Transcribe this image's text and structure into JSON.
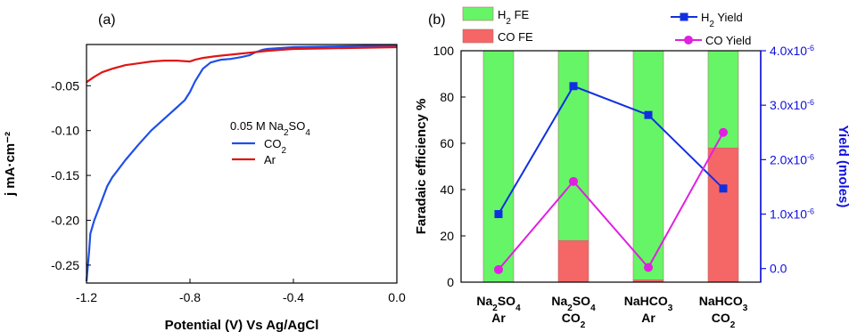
{
  "chart_data": [
    {
      "type": "line",
      "panel_label": "(a)",
      "xlabel": "Potential (V) Vs Ag/AgCl",
      "ylabel": "j mA·cm⁻²",
      "xlim": [
        -1.2,
        0.0
      ],
      "ylim": [
        -0.27,
        -0.004
      ],
      "xticks": [
        -1.2,
        -0.8,
        -0.4,
        0.0
      ],
      "xtick_labels": [
        "-1.2",
        "-0.8",
        "-0.4",
        "0.0"
      ],
      "yticks": [
        -0.25,
        -0.2,
        -0.15,
        -0.1,
        -0.05
      ],
      "ytick_labels": [
        "-0.25",
        "-0.20",
        "-0.15",
        "-0.10",
        "-0.05"
      ],
      "legend": {
        "title_parts": [
          {
            "t": "0.05 M Na"
          },
          {
            "t": "2",
            "sub": true
          },
          {
            "t": "SO"
          },
          {
            "t": "4",
            "sub": true
          }
        ],
        "entries": [
          {
            "parts": [
              {
                "t": "CO"
              },
              {
                "t": "2",
                "sub": true
              }
            ],
            "color": "#1f4fe8"
          },
          {
            "parts": [
              {
                "t": "Ar"
              }
            ],
            "color": "#e01515"
          }
        ]
      },
      "series": [
        {
          "name": "CO2",
          "color": "#1f4fe8",
          "x": [
            -1.2,
            -1.19,
            -1.185,
            -1.17,
            -1.15,
            -1.12,
            -1.1,
            -1.05,
            -1.0,
            -0.95,
            -0.9,
            -0.85,
            -0.82,
            -0.8,
            -0.78,
            -0.75,
            -0.72,
            -0.68,
            -0.64,
            -0.6,
            -0.57,
            -0.55,
            -0.52,
            -0.5,
            -0.45,
            -0.4,
            -0.3,
            -0.2,
            -0.1,
            0.0
          ],
          "y": [
            -0.268,
            -0.235,
            -0.215,
            -0.2,
            -0.185,
            -0.162,
            -0.152,
            -0.133,
            -0.116,
            -0.1,
            -0.087,
            -0.074,
            -0.066,
            -0.057,
            -0.045,
            -0.031,
            -0.024,
            -0.021,
            -0.02,
            -0.018,
            -0.016,
            -0.013,
            -0.01,
            -0.009,
            -0.008,
            -0.007,
            -0.0065,
            -0.006,
            -0.0055,
            -0.005
          ]
        },
        {
          "name": "Ar",
          "color": "#e01515",
          "x": [
            -1.2,
            -1.17,
            -1.14,
            -1.1,
            -1.05,
            -1.0,
            -0.95,
            -0.9,
            -0.85,
            -0.8,
            -0.78,
            -0.75,
            -0.7,
            -0.6,
            -0.5,
            -0.45,
            -0.4,
            -0.3,
            -0.2,
            -0.1,
            0.0
          ],
          "y": [
            -0.046,
            -0.04,
            -0.035,
            -0.031,
            -0.027,
            -0.025,
            -0.023,
            -0.022,
            -0.022,
            -0.023,
            -0.021,
            -0.019,
            -0.017,
            -0.014,
            -0.011,
            -0.01,
            -0.009,
            -0.0085,
            -0.008,
            -0.0075,
            -0.007
          ]
        }
      ]
    },
    {
      "type": "bar",
      "panel_label": "(b)",
      "ylabel": "Faradaic efficiency %",
      "ylabel_right": "Yield (moles)",
      "ylim": [
        0,
        100
      ],
      "ylim_right": [
        -0.25,
        4.0
      ],
      "yticks": [
        0,
        20,
        40,
        60,
        80,
        100
      ],
      "ytick_labels": [
        "0",
        "20",
        "40",
        "60",
        "80",
        "100"
      ],
      "yticks_right": [
        0.0,
        1.0,
        2.0,
        3.0,
        4.0
      ],
      "ytick_labels_right": [
        [
          {
            "t": "0.0"
          }
        ],
        [
          {
            "t": "1.0x10"
          },
          {
            "t": "-6",
            "sup": true
          }
        ],
        [
          {
            "t": "2.0x10"
          },
          {
            "t": "-6",
            "sup": true
          }
        ],
        [
          {
            "t": "3.0x10"
          },
          {
            "t": "-6",
            "sup": true
          }
        ],
        [
          {
            "t": "4.0x10"
          },
          {
            "t": "-6",
            "sup": true
          }
        ]
      ],
      "categories": [
        {
          "line1": [
            {
              "t": "Na"
            },
            {
              "t": "2",
              "sub": true
            },
            {
              "t": "SO"
            },
            {
              "t": "4",
              "sub": true
            }
          ],
          "line2": [
            {
              "t": "Ar"
            }
          ]
        },
        {
          "line1": [
            {
              "t": "Na"
            },
            {
              "t": "2",
              "sub": true
            },
            {
              "t": "SO"
            },
            {
              "t": "4",
              "sub": true
            }
          ],
          "line2": [
            {
              "t": "CO"
            },
            {
              "t": "2",
              "sub": true
            }
          ]
        },
        {
          "line1": [
            {
              "t": "NaHCO"
            },
            {
              "t": "3",
              "sub": true
            }
          ],
          "line2": [
            {
              "t": "Ar"
            }
          ]
        },
        {
          "line1": [
            {
              "t": "NaHCO"
            },
            {
              "t": "3",
              "sub": true
            }
          ],
          "line2": [
            {
              "t": "CO"
            },
            {
              "t": "2",
              "sub": true
            }
          ]
        }
      ],
      "bars": [
        {
          "name_parts": [
            {
              "t": "H"
            },
            {
              "t": "2",
              "sub": true
            },
            {
              "t": " FE"
            }
          ],
          "color": "#66f566",
          "values": [
            100,
            82,
            99,
            42
          ]
        },
        {
          "name_parts": [
            {
              "t": "CO FE"
            }
          ],
          "color": "#f56666",
          "values": [
            0,
            18,
            1,
            58
          ]
        }
      ],
      "lines": [
        {
          "name_parts": [
            {
              "t": "H"
            },
            {
              "t": "2",
              "sub": true
            },
            {
              "t": " Yield"
            }
          ],
          "color": "#1030e0",
          "marker": "square",
          "values": [
            1.0,
            3.35,
            2.82,
            1.47
          ]
        },
        {
          "name_parts": [
            {
              "t": "CO Yield"
            }
          ],
          "color": "#e020e0",
          "marker": "circle",
          "values": [
            -0.02,
            1.6,
            0.02,
            2.5
          ]
        }
      ]
    }
  ]
}
